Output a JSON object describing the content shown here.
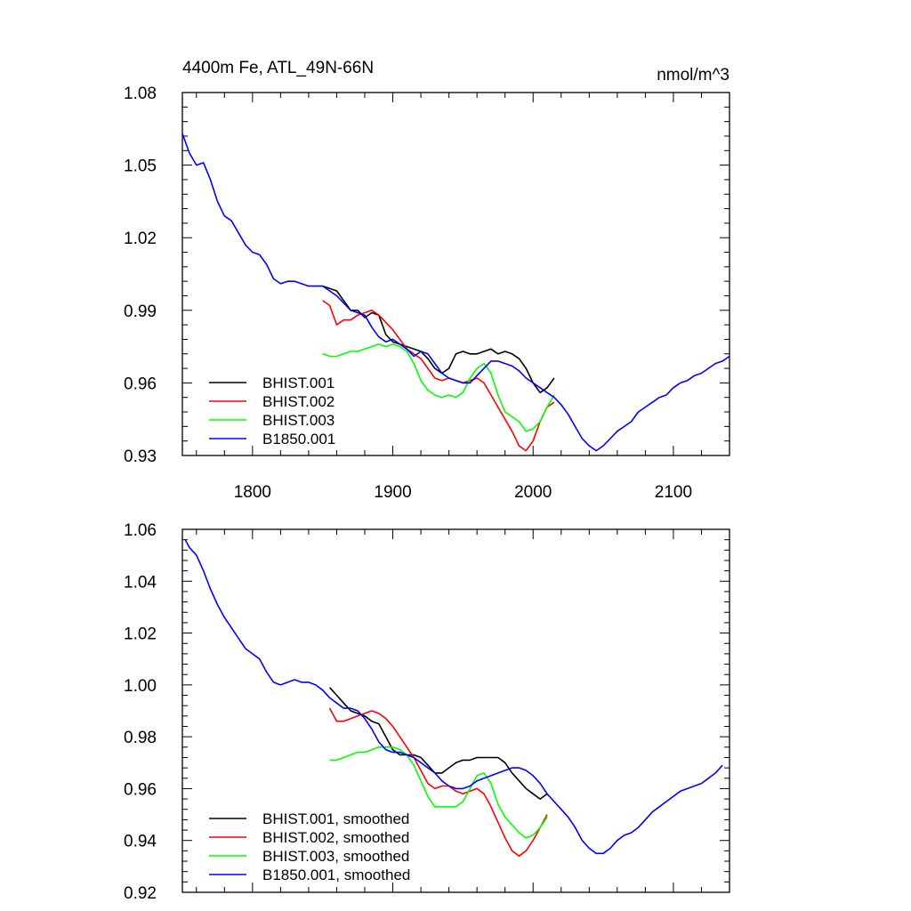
{
  "chart_data": [
    {
      "type": "line",
      "title": "4400m Fe, ATL_49N-66N",
      "units": "nmol/m^3",
      "xlim": [
        1750,
        2140
      ],
      "ylim": [
        0.93,
        1.08
      ],
      "x_ticks": [
        1800,
        1900,
        2000,
        2100
      ],
      "x_tick_labels": [
        "1800",
        "1900",
        "2000",
        "2100"
      ],
      "y_ticks": [
        0.93,
        0.96,
        0.99,
        1.02,
        1.05,
        1.08
      ],
      "y_tick_labels": [
        "0.93",
        "0.96",
        "0.99",
        "1.02",
        "1.05",
        "1.08"
      ],
      "legend_position": "bottom-left",
      "series": [
        {
          "name": "BHIST.001",
          "color": "#000000",
          "x": [
            1850,
            1855,
            1860,
            1865,
            1870,
            1875,
            1880,
            1885,
            1890,
            1895,
            1900,
            1905,
            1910,
            1915,
            1920,
            1925,
            1930,
            1935,
            1940,
            1945,
            1950,
            1955,
            1960,
            1965,
            1970,
            1975,
            1980,
            1985,
            1990,
            1995,
            2000,
            2005,
            2010,
            2015
          ],
          "y": [
            1.0,
            0.999,
            0.998,
            0.994,
            0.99,
            0.99,
            0.987,
            0.989,
            0.988,
            0.98,
            0.977,
            0.976,
            0.975,
            0.974,
            0.973,
            0.97,
            0.966,
            0.964,
            0.966,
            0.972,
            0.973,
            0.972,
            0.972,
            0.973,
            0.974,
            0.972,
            0.973,
            0.972,
            0.97,
            0.966,
            0.96,
            0.956,
            0.958,
            0.962
          ]
        },
        {
          "name": "BHIST.002",
          "color": "#ff0000",
          "x": [
            1850,
            1855,
            1860,
            1865,
            1870,
            1875,
            1880,
            1885,
            1890,
            1895,
            1900,
            1905,
            1910,
            1915,
            1920,
            1925,
            1930,
            1935,
            1940,
            1945,
            1950,
            1955,
            1960,
            1965,
            1970,
            1975,
            1980,
            1985,
            1990,
            1995,
            2000,
            2005,
            2010,
            2015
          ],
          "y": [
            0.994,
            0.992,
            0.984,
            0.986,
            0.986,
            0.988,
            0.989,
            0.99,
            0.988,
            0.985,
            0.982,
            0.978,
            0.974,
            0.972,
            0.97,
            0.966,
            0.962,
            0.961,
            0.962,
            0.961,
            0.96,
            0.961,
            0.962,
            0.96,
            0.955,
            0.95,
            0.945,
            0.94,
            0.934,
            0.932,
            0.936,
            0.944,
            0.95,
            0.952
          ]
        },
        {
          "name": "BHIST.003",
          "color": "#00ff00",
          "x": [
            1850,
            1855,
            1860,
            1865,
            1870,
            1875,
            1880,
            1885,
            1890,
            1895,
            1900,
            1905,
            1910,
            1915,
            1920,
            1925,
            1930,
            1935,
            1940,
            1945,
            1950,
            1955,
            1960,
            1965,
            1970,
            1975,
            1980,
            1985,
            1990,
            1995,
            2000,
            2005,
            2010,
            2015
          ],
          "y": [
            0.972,
            0.971,
            0.971,
            0.972,
            0.973,
            0.973,
            0.974,
            0.975,
            0.976,
            0.975,
            0.976,
            0.975,
            0.973,
            0.968,
            0.961,
            0.957,
            0.955,
            0.954,
            0.955,
            0.954,
            0.956,
            0.962,
            0.966,
            0.968,
            0.964,
            0.955,
            0.948,
            0.946,
            0.944,
            0.94,
            0.941,
            0.944,
            0.95,
            0.955
          ]
        },
        {
          "name": "B1850.001",
          "color": "#0000ff",
          "x": [
            1750,
            1755,
            1760,
            1765,
            1770,
            1775,
            1780,
            1785,
            1790,
            1795,
            1800,
            1805,
            1810,
            1815,
            1820,
            1825,
            1830,
            1835,
            1840,
            1845,
            1850,
            1855,
            1860,
            1865,
            1870,
            1875,
            1880,
            1885,
            1890,
            1895,
            1900,
            1905,
            1910,
            1915,
            1920,
            1925,
            1930,
            1935,
            1940,
            1945,
            1950,
            1955,
            1960,
            1965,
            1970,
            1975,
            1980,
            1985,
            1990,
            1995,
            2000,
            2005,
            2010,
            2015,
            2020,
            2025,
            2030,
            2035,
            2040,
            2045,
            2050,
            2055,
            2060,
            2065,
            2070,
            2075,
            2080,
            2085,
            2090,
            2095,
            2100,
            2105,
            2110,
            2115,
            2120,
            2125,
            2130,
            2135,
            2140
          ],
          "y": [
            1.063,
            1.055,
            1.05,
            1.051,
            1.044,
            1.035,
            1.029,
            1.027,
            1.022,
            1.017,
            1.014,
            1.013,
            1.009,
            1.003,
            1.001,
            1.002,
            1.002,
            1.001,
            1.0,
            1.0,
            1.0,
            0.998,
            0.996,
            0.993,
            0.99,
            0.989,
            0.988,
            0.983,
            0.979,
            0.977,
            0.978,
            0.976,
            0.974,
            0.971,
            0.973,
            0.972,
            0.968,
            0.964,
            0.962,
            0.961,
            0.96,
            0.96,
            0.963,
            0.966,
            0.969,
            0.969,
            0.968,
            0.967,
            0.965,
            0.962,
            0.96,
            0.958,
            0.956,
            0.954,
            0.951,
            0.947,
            0.942,
            0.937,
            0.934,
            0.932,
            0.934,
            0.937,
            0.94,
            0.942,
            0.944,
            0.948,
            0.95,
            0.952,
            0.954,
            0.955,
            0.958,
            0.96,
            0.961,
            0.963,
            0.964,
            0.966,
            0.968,
            0.969,
            0.971
          ]
        }
      ]
    },
    {
      "type": "line",
      "title": "",
      "xlim": [
        1750,
        2140
      ],
      "ylim": [
        0.92,
        1.06
      ],
      "x_ticks": [
        1800,
        1900,
        2000,
        2100
      ],
      "x_tick_labels": [],
      "y_ticks": [
        0.92,
        0.94,
        0.96,
        0.98,
        1.0,
        1.02,
        1.04,
        1.06
      ],
      "y_tick_labels": [
        "0.92",
        "0.94",
        "0.96",
        "0.98",
        "1.00",
        "1.02",
        "1.04",
        "1.06"
      ],
      "legend_position": "bottom-left",
      "series": [
        {
          "name": "BHIST.001, smoothed",
          "color": "#000000",
          "x": [
            1855,
            1860,
            1865,
            1870,
            1875,
            1880,
            1885,
            1890,
            1895,
            1900,
            1905,
            1910,
            1915,
            1920,
            1925,
            1930,
            1935,
            1940,
            1945,
            1950,
            1955,
            1960,
            1965,
            1970,
            1975,
            1980,
            1985,
            1990,
            1995,
            2000,
            2005,
            2010
          ],
          "y": [
            0.999,
            0.996,
            0.993,
            0.99,
            0.989,
            0.988,
            0.986,
            0.985,
            0.98,
            0.975,
            0.973,
            0.973,
            0.973,
            0.972,
            0.969,
            0.966,
            0.966,
            0.968,
            0.97,
            0.971,
            0.971,
            0.972,
            0.972,
            0.972,
            0.972,
            0.97,
            0.966,
            0.963,
            0.96,
            0.958,
            0.956,
            0.958
          ]
        },
        {
          "name": "BHIST.002, smoothed",
          "color": "#ff0000",
          "x": [
            1855,
            1860,
            1865,
            1870,
            1875,
            1880,
            1885,
            1890,
            1895,
            1900,
            1905,
            1910,
            1915,
            1920,
            1925,
            1930,
            1935,
            1940,
            1945,
            1950,
            1955,
            1960,
            1965,
            1970,
            1975,
            1980,
            1985,
            1990,
            1995,
            2000,
            2005,
            2010
          ],
          "y": [
            0.991,
            0.986,
            0.986,
            0.987,
            0.988,
            0.989,
            0.99,
            0.989,
            0.987,
            0.984,
            0.98,
            0.976,
            0.972,
            0.967,
            0.962,
            0.96,
            0.961,
            0.961,
            0.959,
            0.958,
            0.959,
            0.96,
            0.958,
            0.953,
            0.947,
            0.941,
            0.936,
            0.934,
            0.936,
            0.94,
            0.945,
            0.95
          ]
        },
        {
          "name": "BHIST.003, smoothed",
          "color": "#00ff00",
          "x": [
            1855,
            1860,
            1865,
            1870,
            1875,
            1880,
            1885,
            1890,
            1895,
            1900,
            1905,
            1910,
            1915,
            1920,
            1925,
            1930,
            1935,
            1940,
            1945,
            1950,
            1955,
            1960,
            1965,
            1970,
            1975,
            1980,
            1985,
            1990,
            1995,
            2000,
            2005,
            2010
          ],
          "y": [
            0.971,
            0.971,
            0.972,
            0.973,
            0.974,
            0.974,
            0.975,
            0.976,
            0.976,
            0.976,
            0.975,
            0.973,
            0.969,
            0.963,
            0.957,
            0.953,
            0.953,
            0.953,
            0.953,
            0.955,
            0.96,
            0.965,
            0.966,
            0.962,
            0.954,
            0.949,
            0.946,
            0.943,
            0.941,
            0.942,
            0.945,
            0.949
          ]
        },
        {
          "name": "B1850.001, smoothed",
          "color": "#0000ff",
          "x": [
            1752,
            1755,
            1760,
            1765,
            1770,
            1775,
            1780,
            1785,
            1790,
            1795,
            1800,
            1805,
            1810,
            1815,
            1820,
            1825,
            1830,
            1835,
            1840,
            1845,
            1850,
            1855,
            1860,
            1865,
            1870,
            1875,
            1880,
            1885,
            1890,
            1895,
            1900,
            1905,
            1910,
            1915,
            1920,
            1925,
            1930,
            1935,
            1940,
            1945,
            1950,
            1955,
            1960,
            1965,
            1970,
            1975,
            1980,
            1985,
            1990,
            1995,
            2000,
            2005,
            2010,
            2015,
            2020,
            2025,
            2030,
            2035,
            2040,
            2045,
            2050,
            2055,
            2060,
            2065,
            2070,
            2075,
            2080,
            2085,
            2090,
            2095,
            2100,
            2105,
            2110,
            2115,
            2120,
            2125,
            2130,
            2135
          ],
          "y": [
            1.056,
            1.053,
            1.05,
            1.044,
            1.037,
            1.031,
            1.026,
            1.022,
            1.018,
            1.014,
            1.012,
            1.01,
            1.005,
            1.001,
            1.0,
            1.001,
            1.002,
            1.001,
            1.001,
            1.0,
            0.998,
            0.995,
            0.993,
            0.991,
            0.991,
            0.99,
            0.987,
            0.983,
            0.978,
            0.975,
            0.974,
            0.974,
            0.973,
            0.972,
            0.97,
            0.968,
            0.966,
            0.963,
            0.961,
            0.96,
            0.96,
            0.961,
            0.963,
            0.964,
            0.965,
            0.966,
            0.967,
            0.968,
            0.968,
            0.967,
            0.965,
            0.962,
            0.958,
            0.955,
            0.952,
            0.949,
            0.945,
            0.94,
            0.937,
            0.935,
            0.935,
            0.937,
            0.94,
            0.942,
            0.943,
            0.945,
            0.948,
            0.951,
            0.953,
            0.955,
            0.957,
            0.959,
            0.96,
            0.961,
            0.962,
            0.964,
            0.966,
            0.969
          ]
        }
      ]
    }
  ]
}
